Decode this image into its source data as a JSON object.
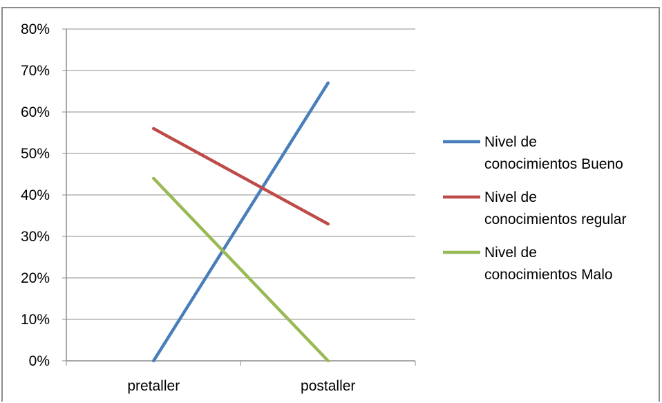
{
  "chart_data": {
    "type": "line",
    "categories": [
      "pretaller",
      "postaller"
    ],
    "y_ticks": [
      "0%",
      "10%",
      "20%",
      "30%",
      "40%",
      "50%",
      "60%",
      "70%",
      "80%"
    ],
    "ylim": [
      0,
      80
    ],
    "grid": true,
    "legend_position": "right",
    "series": [
      {
        "name_lines": [
          "Nivel de",
          "conocimientos Bueno"
        ],
        "values": [
          0,
          67
        ],
        "color": "#4a7ebb"
      },
      {
        "name_lines": [
          "Nivel de",
          "conocimientos regular"
        ],
        "values": [
          56,
          33
        ],
        "color": "#be4b48"
      },
      {
        "name_lines": [
          "Nivel de",
          "conocimientos Malo"
        ],
        "values": [
          44,
          0
        ],
        "color": "#98b954"
      }
    ]
  }
}
